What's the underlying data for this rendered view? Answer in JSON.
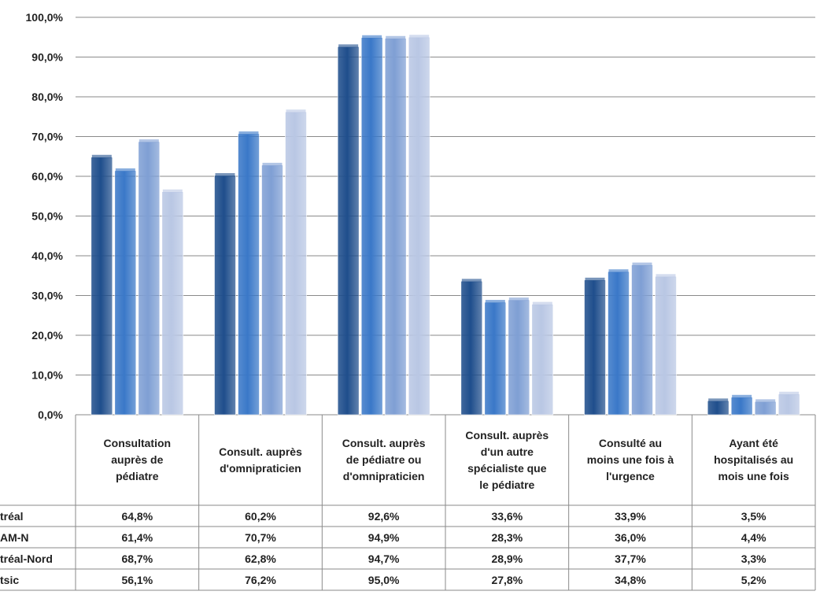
{
  "chart_data": {
    "type": "bar",
    "categories": [
      "Consultation\nauprès de\npédiatre",
      "Consult. auprès\nd'omnipraticien",
      "Consult. auprès\nde pédiatre ou\nd'omnipraticien",
      "Consult. auprès\nd'un autre\nspécialiste que\nle pédiatre",
      "Consulté au\nmoins une fois à\nl'urgence",
      "Ayant été\nhospitalisés au\nmois une fois"
    ],
    "series": [
      {
        "name": "tréal",
        "values": [
          64.8,
          60.2,
          92.6,
          33.6,
          33.9,
          3.5
        ],
        "labels": [
          "64,8%",
          "60,2%",
          "92,6%",
          "33,6%",
          "33,9%",
          "3,5%"
        ]
      },
      {
        "name": "AM-N",
        "values": [
          61.4,
          70.7,
          94.9,
          28.3,
          36.0,
          4.4
        ],
        "labels": [
          "61,4%",
          "70,7%",
          "94,9%",
          "28,3%",
          "36,0%",
          "4,4%"
        ]
      },
      {
        "name": "tréal-Nord",
        "values": [
          68.7,
          62.8,
          94.7,
          28.9,
          37.7,
          3.3
        ],
        "labels": [
          "68,7%",
          "62,8%",
          "94,7%",
          "28,9%",
          "37,7%",
          "3,3%"
        ]
      },
      {
        "name": "tsic",
        "values": [
          56.1,
          76.2,
          95.0,
          27.8,
          34.8,
          5.2
        ],
        "labels": [
          "56,1%",
          "76,2%",
          "95,0%",
          "27,8%",
          "34,8%",
          "5,2%"
        ]
      }
    ],
    "yticks": [
      "0,0%",
      "10,0%",
      "20,0%",
      "30,0%",
      "40,0%",
      "50,0%",
      "60,0%",
      "70,0%",
      "80,0%",
      "90,0%",
      "100,0%"
    ],
    "ylim": [
      0,
      100
    ],
    "grid": true,
    "legend": "data-table-below",
    "colors": [
      "#1f4e8c",
      "#3a78c8",
      "#7f9fd4",
      "#b9c7e4"
    ]
  }
}
